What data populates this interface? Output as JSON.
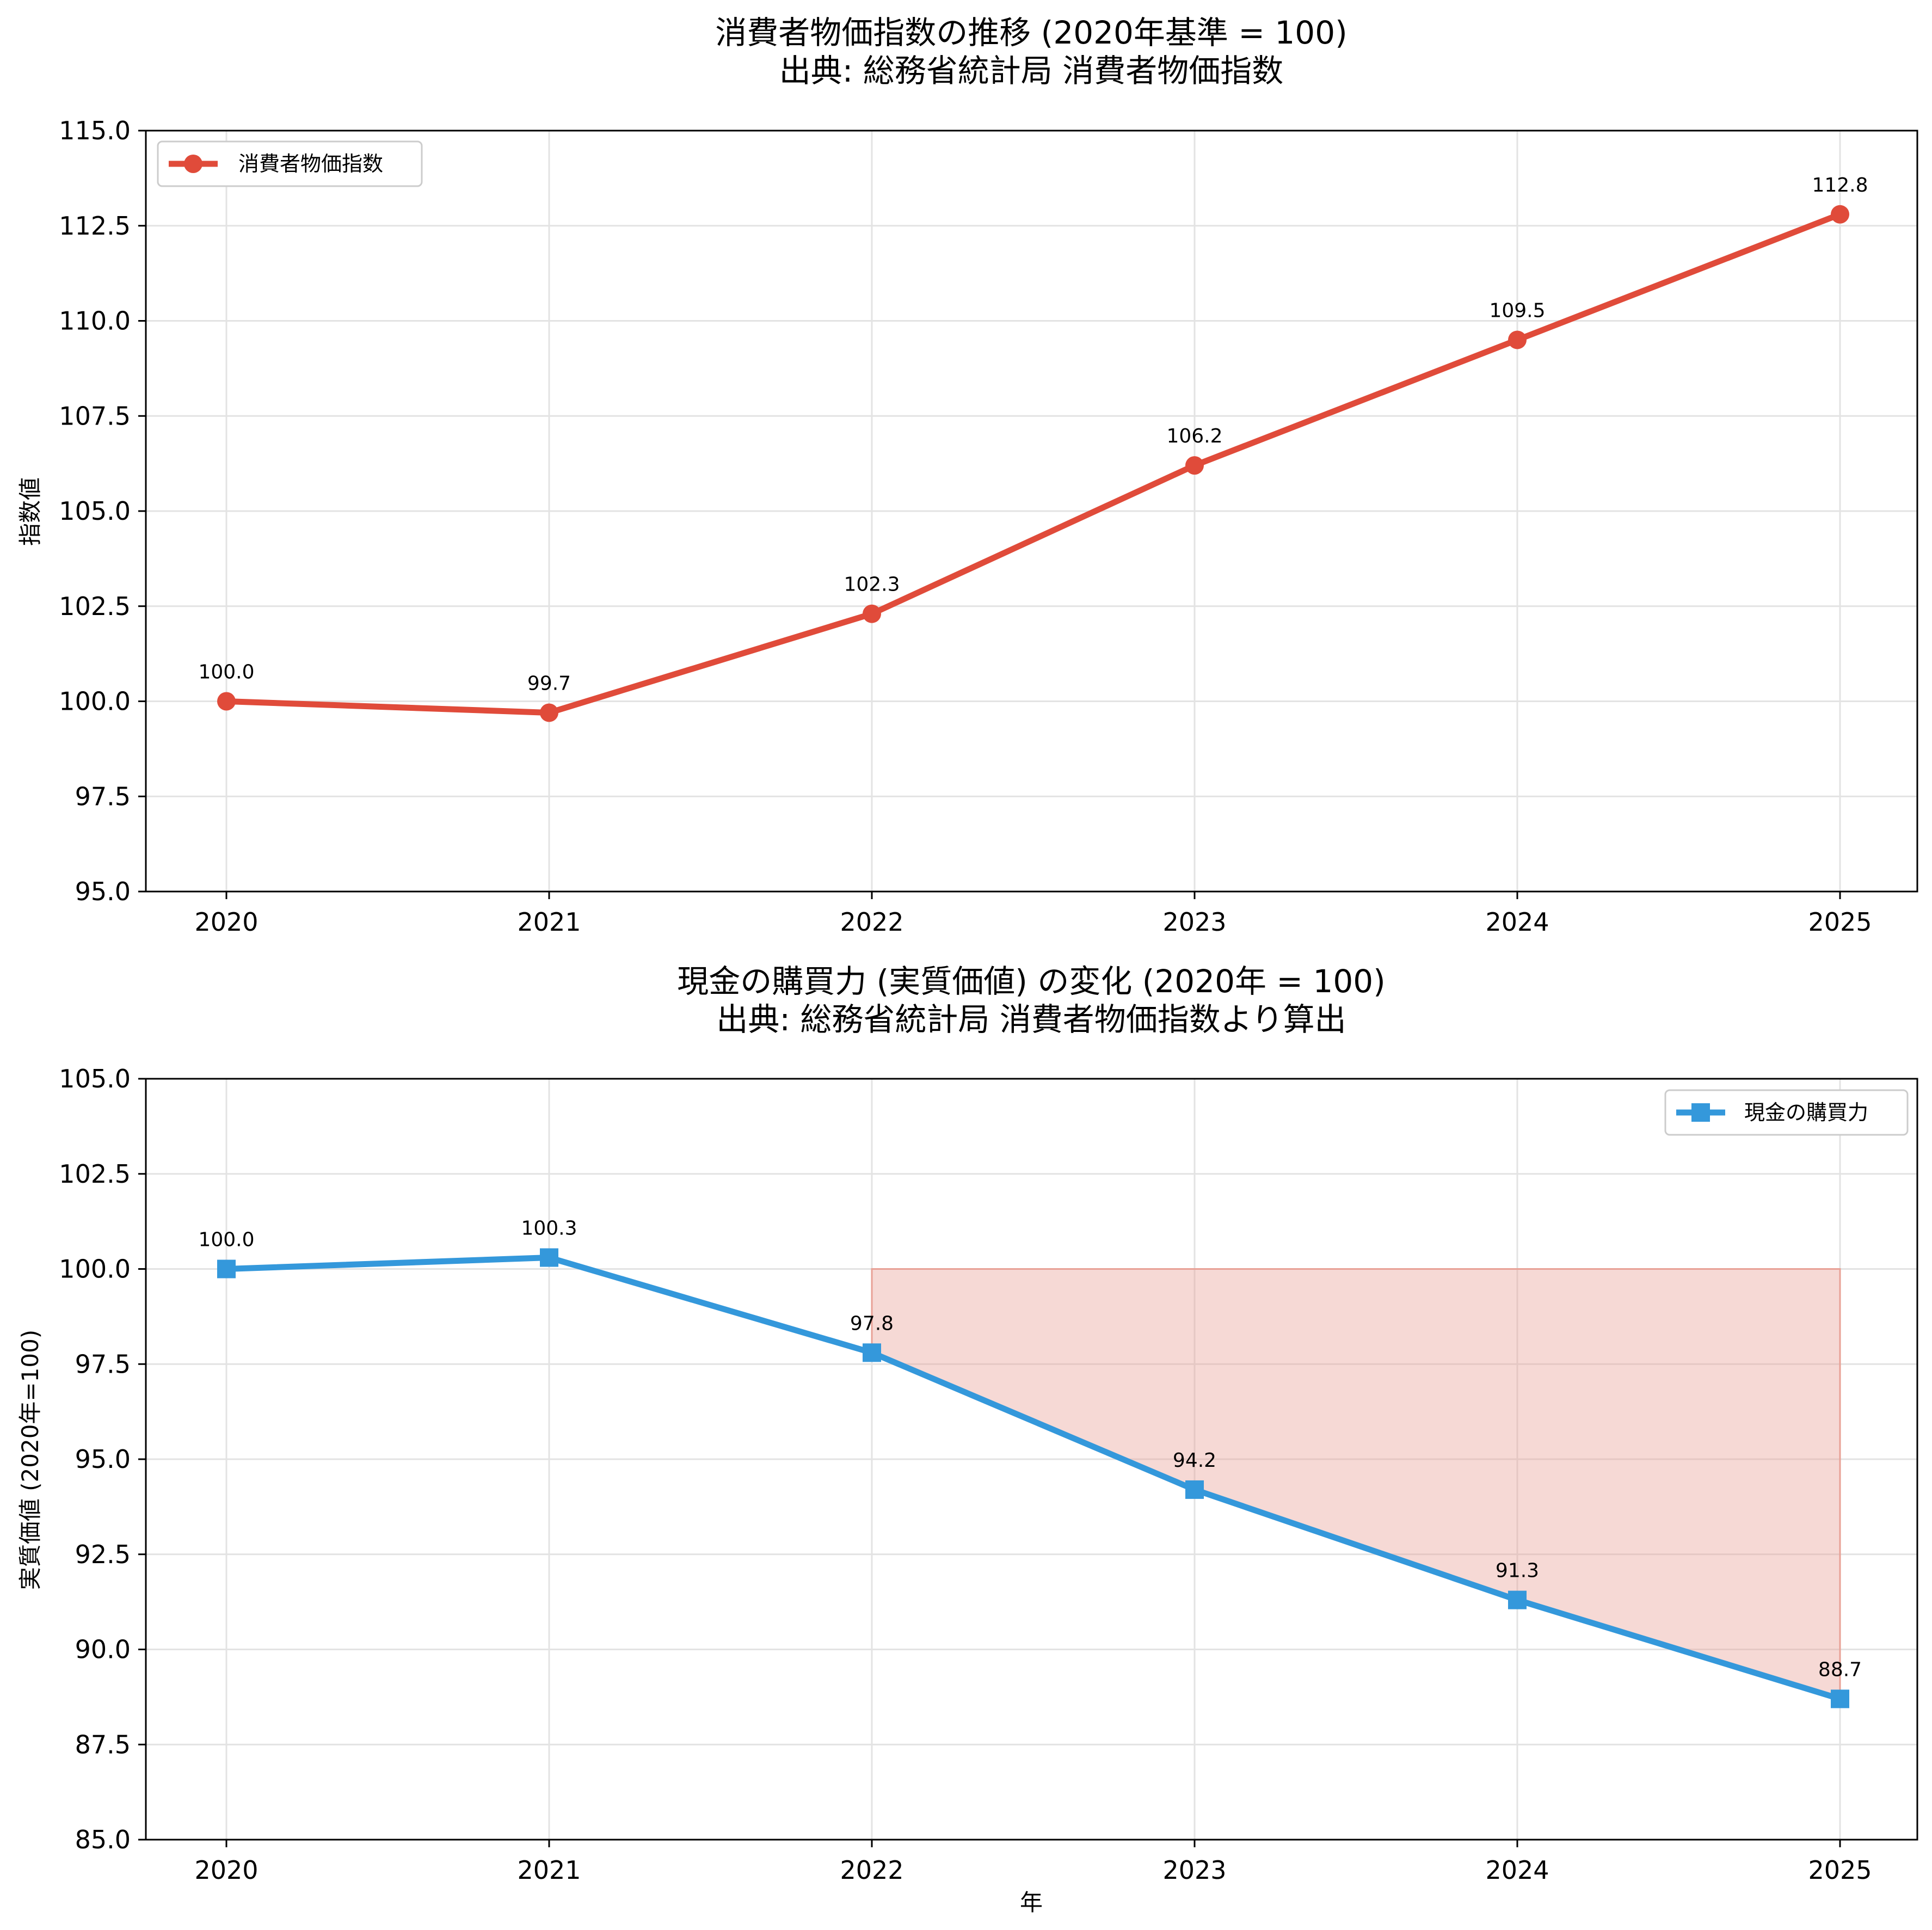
{
  "colors": {
    "cpi": "#e04b3a",
    "purchasing_power": "#3498db",
    "loss_fill": "#e8a196"
  },
  "chart_data": [
    {
      "type": "line",
      "title": "消費者物価指数の推移 (2020年基準 = 100)",
      "subtitle": "出典: 総務省統計局 消費者物価指数",
      "xlabel": "",
      "ylabel": "指数値",
      "categories": [
        "2020",
        "2021",
        "2022",
        "2023",
        "2024",
        "2025"
      ],
      "series": [
        {
          "name": "消費者物価指数",
          "marker": "circle",
          "values": [
            100.0,
            99.7,
            102.3,
            106.2,
            109.5,
            112.8
          ]
        }
      ],
      "data_labels": [
        "100.0",
        "99.7",
        "102.3",
        "106.2",
        "109.5",
        "112.8"
      ],
      "ylim": [
        95.0,
        115.0
      ],
      "yticks": [
        "95.0",
        "97.5",
        "100.0",
        "102.5",
        "105.0",
        "107.5",
        "110.0",
        "112.5",
        "115.0"
      ],
      "grid": true,
      "legend_position": "top-left"
    },
    {
      "type": "line",
      "title": "現金の購買力 (実質価値) の変化 (2020年 = 100)",
      "subtitle": "出典: 総務省統計局 消費者物価指数より算出",
      "xlabel": "年",
      "ylabel": "実質価値 (2020年=100)",
      "categories": [
        "2020",
        "2021",
        "2022",
        "2023",
        "2024",
        "2025"
      ],
      "series": [
        {
          "name": "現金の購買力",
          "marker": "square",
          "values": [
            100.0,
            100.3,
            97.8,
            94.2,
            91.3,
            88.7
          ]
        }
      ],
      "data_labels": [
        "100.0",
        "100.3",
        "97.8",
        "94.2",
        "91.3",
        "88.7"
      ],
      "shaded_region": {
        "from_index": 2,
        "to_index": 5,
        "upper": 100.0
      },
      "ylim": [
        85.0,
        105.0
      ],
      "yticks": [
        "85.0",
        "87.5",
        "90.0",
        "92.5",
        "95.0",
        "97.5",
        "100.0",
        "102.5",
        "105.0"
      ],
      "grid": true,
      "legend_position": "top-right"
    }
  ]
}
